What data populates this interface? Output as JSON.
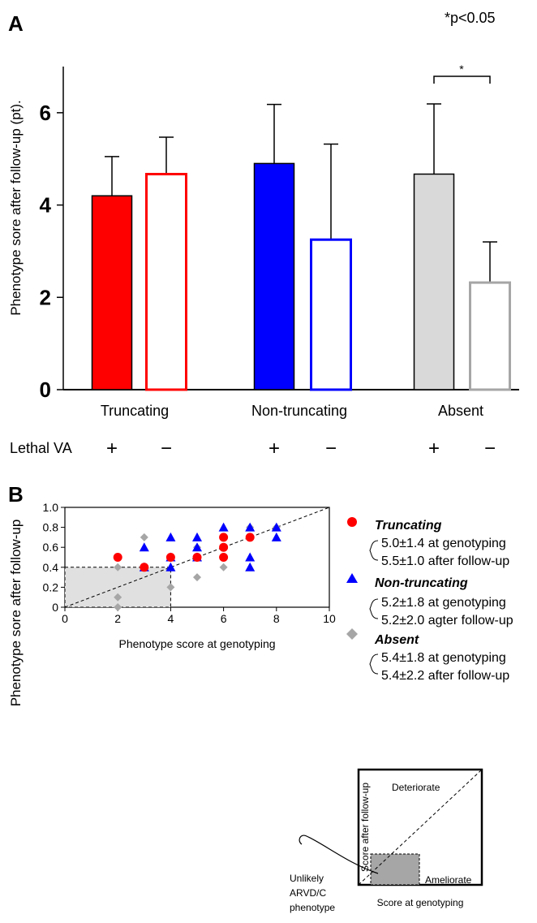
{
  "chart_data": [
    {
      "panel": "A",
      "type": "bar",
      "note": "*p<0.05",
      "ylabel": "Phenotype sore after follow-up (pt).",
      "ylim": [
        0,
        7
      ],
      "yticks": [
        0,
        2,
        4,
        6
      ],
      "categories": [
        "Truncating",
        "Non-truncating",
        "Absent"
      ],
      "row_label": "Lethal VA",
      "signs": [
        "+",
        "−"
      ],
      "significance_label": "*",
      "series": [
        {
          "group": "Truncating",
          "lethal_va": "+",
          "value": 4.2,
          "error": 0.85,
          "color": "#ff0000",
          "filled": true
        },
        {
          "group": "Truncating",
          "lethal_va": "−",
          "value": 4.67,
          "error": 0.8,
          "color": "#ff0000",
          "filled": false
        },
        {
          "group": "Non-truncating",
          "lethal_va": "+",
          "value": 4.9,
          "error": 1.28,
          "color": "#0000ff",
          "filled": true
        },
        {
          "group": "Non-truncating",
          "lethal_va": "−",
          "value": 3.25,
          "error": 2.07,
          "color": "#0000ff",
          "filled": false
        },
        {
          "group": "Absent",
          "lethal_va": "+",
          "value": 4.67,
          "error": 1.52,
          "color": "#d9d9d9",
          "filled": true
        },
        {
          "group": "Absent",
          "lethal_va": "−",
          "value": 2.32,
          "error": 0.88,
          "color": "#a6a6a6",
          "filled": false
        }
      ]
    },
    {
      "panel": "B",
      "type": "scatter",
      "xlabel": "Phenotype score at genotyping",
      "ylabel": "Phenotype sore after follow-up",
      "xlim": [
        0,
        10
      ],
      "ylim": [
        0,
        1.0
      ],
      "xticks": [
        "0",
        "2",
        "4",
        "6",
        "8",
        "10"
      ],
      "yticks": [
        "0",
        "0.2",
        "0.4",
        "0.6",
        "0.8",
        "1.0"
      ],
      "shaded_region": {
        "x": [
          0,
          4
        ],
        "y": [
          0,
          0.4
        ]
      },
      "series": [
        {
          "name": "Truncating",
          "marker": "circle",
          "color": "#ff0000",
          "stats": [
            "5.0±1.4 at genotyping",
            "5.5±1.0 after follow-up"
          ],
          "points": [
            [
              2,
              0.5
            ],
            [
              3,
              0.4
            ],
            [
              4,
              0.5
            ],
            [
              5,
              0.5
            ],
            [
              6,
              0.7
            ],
            [
              6,
              0.6
            ],
            [
              6,
              0.5
            ],
            [
              7,
              0.7
            ]
          ]
        },
        {
          "name": "Non-truncating",
          "marker": "triangle",
          "color": "#0000ff",
          "stats": [
            "5.2±1.8 at genotyping",
            "5.2±2.0 agter follow-up"
          ],
          "points": [
            [
              3,
              0.6
            ],
            [
              3,
              0.4
            ],
            [
              4,
              0.7
            ],
            [
              4,
              0.5
            ],
            [
              4,
              0.4
            ],
            [
              5,
              0.7
            ],
            [
              5,
              0.6
            ],
            [
              5,
              0.5
            ],
            [
              6,
              0.8
            ],
            [
              7,
              0.8
            ],
            [
              7,
              0.5
            ],
            [
              7,
              0.4
            ],
            [
              8,
              0.8
            ],
            [
              8,
              0.7
            ]
          ]
        },
        {
          "name": "Absent",
          "marker": "diamond",
          "color": "#a6a6a6",
          "stats": [
            "5.4±1.8 at genotyping",
            "5.4±2.2 after follow-up"
          ],
          "points": [
            [
              2,
              0.4
            ],
            [
              2,
              0.1
            ],
            [
              2,
              0.0
            ],
            [
              3,
              0.7
            ],
            [
              3,
              0.4
            ],
            [
              4,
              0.5
            ],
            [
              4,
              0.2
            ],
            [
              5,
              0.6
            ],
            [
              5,
              0.3
            ],
            [
              6,
              0.4
            ],
            [
              7,
              0.8
            ],
            [
              8,
              0.8
            ]
          ]
        }
      ]
    },
    {
      "panel": "inset",
      "type": "diagram",
      "labels": {
        "top": "Deteriorate",
        "bottom": "Ameliorate",
        "xlabel": "Score at genotyping",
        "ylabel": "Score after follow-up",
        "callout": [
          "Unlikely",
          "ARVD/C",
          "phenotype"
        ]
      }
    }
  ]
}
